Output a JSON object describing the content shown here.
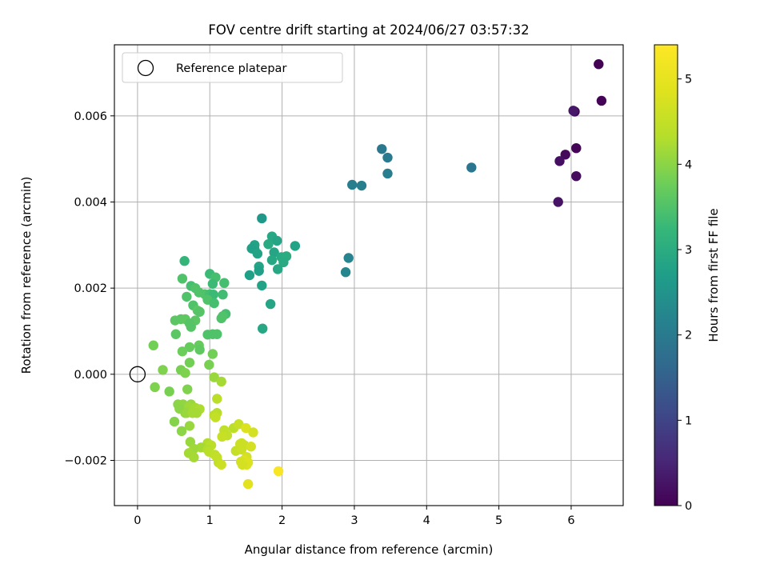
{
  "chart_data": {
    "type": "scatter",
    "title": "FOV centre drift starting at 2024/06/27 03:57:32",
    "xlabel": "Angular distance from reference (arcmin)",
    "ylabel": "Rotation from reference (arcmin)",
    "xlim": [
      -0.32,
      6.72
    ],
    "ylim": [
      -0.00305,
      0.00765
    ],
    "xticks": [
      "0",
      "1",
      "2",
      "3",
      "4",
      "5",
      "6"
    ],
    "yticks": [
      "−0.002",
      "0.000",
      "0.002",
      "0.004",
      "0.006"
    ],
    "grid": true,
    "legend": {
      "position": "top-left",
      "entries": [
        "Reference platepar"
      ]
    },
    "reference_point": {
      "x": 0,
      "y": 0,
      "label": "Reference platepar"
    },
    "colorbar": {
      "label": "Hours from first FF file",
      "colormap": "viridis",
      "range": [
        0,
        5.4
      ],
      "ticks": [
        "0",
        "1",
        "2",
        "3",
        "4",
        "5"
      ]
    },
    "points": [
      [
        6.38,
        0.0072,
        0.02
      ],
      [
        6.42,
        0.00635,
        0.03
      ],
      [
        6.05,
        0.0061,
        0.05
      ],
      [
        6.07,
        0.00525,
        0.05
      ],
      [
        5.92,
        0.0051,
        0.1
      ],
      [
        6.07,
        0.0046,
        0.15
      ],
      [
        5.84,
        0.00495,
        0.2
      ],
      [
        5.82,
        0.004,
        0.25
      ],
      [
        6.03,
        0.00612,
        0.3
      ],
      [
        4.62,
        0.0048,
        1.9
      ],
      [
        3.38,
        0.00523,
        1.95
      ],
      [
        3.46,
        0.00503,
        2.0
      ],
      [
        3.46,
        0.00466,
        2.05
      ],
      [
        2.97,
        0.0044,
        2.1
      ],
      [
        3.1,
        0.00438,
        2.1
      ],
      [
        2.92,
        0.0027,
        2.2
      ],
      [
        2.88,
        0.00237,
        2.25
      ],
      [
        1.72,
        0.00362,
        2.6
      ],
      [
        1.62,
        0.0029,
        2.7
      ],
      [
        1.62,
        0.003,
        2.8
      ],
      [
        1.58,
        0.00292,
        2.75
      ],
      [
        1.66,
        0.0028,
        2.8
      ],
      [
        1.55,
        0.0023,
        2.75
      ],
      [
        1.68,
        0.0025,
        2.85
      ],
      [
        1.68,
        0.0024,
        2.75
      ],
      [
        1.72,
        0.00206,
        2.8
      ],
      [
        1.86,
        0.0032,
        2.9
      ],
      [
        1.93,
        0.0031,
        2.85
      ],
      [
        1.81,
        0.00302,
        2.95
      ],
      [
        1.89,
        0.00283,
        2.85
      ],
      [
        1.86,
        0.00265,
        2.9
      ],
      [
        1.99,
        0.00272,
        2.95
      ],
      [
        2.06,
        0.00274,
        3.0
      ],
      [
        2.02,
        0.0026,
        2.95
      ],
      [
        1.94,
        0.00244,
        2.9
      ],
      [
        2.18,
        0.00298,
        2.8
      ],
      [
        1.84,
        0.00163,
        2.85
      ],
      [
        1.73,
        0.00106,
        2.9
      ],
      [
        0.65,
        0.00263,
        3.2
      ],
      [
        1.0,
        0.00233,
        3.3
      ],
      [
        1.08,
        0.00225,
        3.4
      ],
      [
        1.04,
        0.0021,
        3.3
      ],
      [
        1.2,
        0.00212,
        3.4
      ],
      [
        0.62,
        0.00222,
        3.5
      ],
      [
        0.74,
        0.00205,
        3.4
      ],
      [
        0.8,
        0.002,
        3.5
      ],
      [
        0.85,
        0.0019,
        3.5
      ],
      [
        0.93,
        0.00186,
        3.5
      ],
      [
        1.0,
        0.00186,
        3.4
      ],
      [
        1.05,
        0.00185,
        3.3
      ],
      [
        1.18,
        0.00185,
        3.35
      ],
      [
        0.68,
        0.0018,
        3.5
      ],
      [
        0.97,
        0.00173,
        3.5
      ],
      [
        1.06,
        0.00165,
        3.4
      ],
      [
        0.77,
        0.0016,
        3.5
      ],
      [
        0.83,
        0.00148,
        3.6
      ],
      [
        0.86,
        0.00145,
        3.55
      ],
      [
        1.22,
        0.0014,
        3.4
      ],
      [
        1.18,
        0.00135,
        3.5
      ],
      [
        1.16,
        0.0013,
        3.5
      ],
      [
        0.52,
        0.00125,
        3.6
      ],
      [
        0.6,
        0.00128,
        3.6
      ],
      [
        0.66,
        0.00128,
        3.65
      ],
      [
        0.8,
        0.00125,
        3.6
      ],
      [
        0.72,
        0.00118,
        3.55
      ],
      [
        0.74,
        0.0011,
        3.55
      ],
      [
        0.97,
        0.00092,
        3.5
      ],
      [
        1.04,
        0.00093,
        3.5
      ],
      [
        1.1,
        0.00093,
        3.5
      ],
      [
        0.53,
        0.00093,
        3.6
      ],
      [
        0.72,
        0.00063,
        3.7
      ],
      [
        0.85,
        0.00067,
        3.7
      ],
      [
        0.86,
        0.00057,
        3.65
      ],
      [
        0.62,
        0.00053,
        3.75
      ],
      [
        1.04,
        0.00047,
        3.8
      ],
      [
        0.22,
        0.00067,
        3.8
      ],
      [
        0.72,
        0.00027,
        3.8
      ],
      [
        0.99,
        0.00022,
        3.85
      ],
      [
        0.35,
        0.0001,
        3.9
      ],
      [
        0.6,
        0.0001,
        3.85
      ],
      [
        0.66,
        3e-05,
        3.9
      ],
      [
        1.06,
        -7e-05,
        4.1
      ],
      [
        1.16,
        -0.00017,
        4.2
      ],
      [
        0.24,
        -0.0003,
        3.9
      ],
      [
        0.69,
        -0.00035,
        3.9
      ],
      [
        0.44,
        -0.0004,
        3.85
      ],
      [
        1.1,
        -0.00057,
        4.4
      ],
      [
        0.56,
        -0.0007,
        4.0
      ],
      [
        0.63,
        -0.0007,
        4.05
      ],
      [
        0.74,
        -0.0007,
        4.1
      ],
      [
        0.71,
        -0.00077,
        4.15
      ],
      [
        0.8,
        -0.00078,
        4.2
      ],
      [
        0.86,
        -0.00081,
        4.25
      ],
      [
        0.58,
        -0.0008,
        4.0
      ],
      [
        0.66,
        -0.0009,
        4.05
      ],
      [
        0.68,
        -0.0009,
        4.1
      ],
      [
        0.76,
        -0.0009,
        4.2
      ],
      [
        0.82,
        -0.0009,
        4.2
      ],
      [
        1.1,
        -0.0009,
        4.35
      ],
      [
        1.06,
        -0.00095,
        4.4
      ],
      [
        1.08,
        -0.001,
        4.5
      ],
      [
        0.51,
        -0.0011,
        3.95
      ],
      [
        0.72,
        -0.0012,
        4.1
      ],
      [
        1.33,
        -0.00125,
        4.4
      ],
      [
        1.4,
        -0.00116,
        4.55
      ],
      [
        1.2,
        -0.0013,
        4.45
      ],
      [
        1.5,
        -0.00125,
        4.8
      ],
      [
        0.61,
        -0.00132,
        4.0
      ],
      [
        1.6,
        -0.00135,
        4.7
      ],
      [
        1.24,
        -0.00142,
        4.5
      ],
      [
        1.17,
        -0.00145,
        4.55
      ],
      [
        0.73,
        -0.00157,
        4.1
      ],
      [
        0.97,
        -0.0016,
        4.3
      ],
      [
        1.02,
        -0.00165,
        4.4
      ],
      [
        1.42,
        -0.00162,
        4.6
      ],
      [
        1.48,
        -0.00165,
        4.6
      ],
      [
        1.57,
        -0.00168,
        4.7
      ],
      [
        0.88,
        -0.0017,
        4.2
      ],
      [
        0.78,
        -0.00173,
        4.15
      ],
      [
        0.97,
        -0.00175,
        4.3
      ],
      [
        0.99,
        -0.0018,
        4.4
      ],
      [
        1.36,
        -0.00178,
        4.5
      ],
      [
        1.44,
        -0.00175,
        4.6
      ],
      [
        0.71,
        -0.00183,
        4.2
      ],
      [
        1.07,
        -0.00187,
        4.45
      ],
      [
        1.1,
        -0.00193,
        4.5
      ],
      [
        1.51,
        -0.00192,
        4.7
      ],
      [
        1.47,
        -0.002,
        4.85
      ],
      [
        0.78,
        -0.00193,
        4.2
      ],
      [
        1.12,
        -0.00205,
        4.5
      ],
      [
        1.16,
        -0.0021,
        4.6
      ],
      [
        1.51,
        -0.0021,
        4.8
      ],
      [
        1.43,
        -0.00203,
        4.7
      ],
      [
        1.95,
        -0.00225,
        5.3
      ],
      [
        1.53,
        -0.00255,
        4.9
      ],
      [
        1.53,
        -0.00205,
        4.8
      ],
      [
        1.44,
        -0.0016,
        4.6
      ],
      [
        1.45,
        -0.0021,
        4.7
      ]
    ]
  }
}
